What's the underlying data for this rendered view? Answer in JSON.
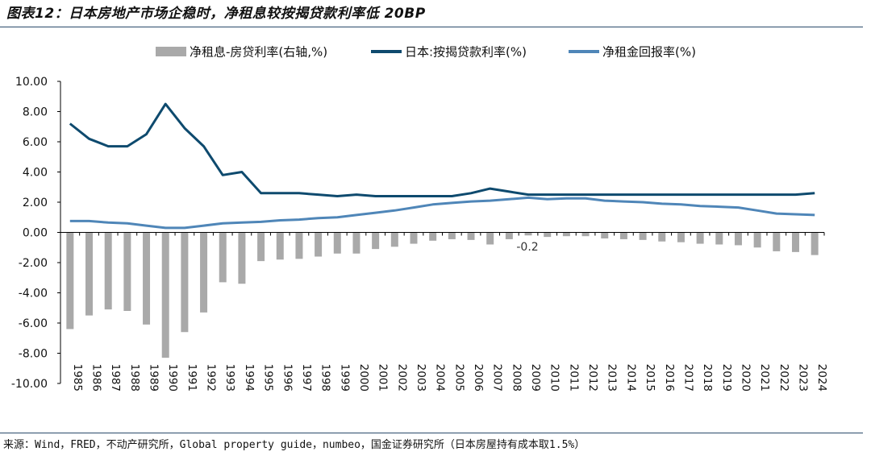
{
  "title": "图表12：日本房地产市场企稳时，净租息较按揭贷款利率低 20BP",
  "source": "来源：Wind，FRED，不动产研究所，Global property guide，numbeo，国金证券研究所（日本房屋持有成本取1.5%）",
  "colors": {
    "bar": "#a9a9a9",
    "mortgage": "#0e4a6e",
    "yield": "#4f86b8",
    "axis": "#000000"
  },
  "chart_data": {
    "type": "bar+line",
    "categories": [
      "1985",
      "1986",
      "1987",
      "1988",
      "1989",
      "1990",
      "1991",
      "1992",
      "1993",
      "1994",
      "1995",
      "1996",
      "1997",
      "1998",
      "1999",
      "2000",
      "2001",
      "2002",
      "2003",
      "2004",
      "2005",
      "2006",
      "2007",
      "2008",
      "2009",
      "2010",
      "2011",
      "2012",
      "2013",
      "2014",
      "2015",
      "2016",
      "2017",
      "2018",
      "2019",
      "2020",
      "2021",
      "2022",
      "2023",
      "2024"
    ],
    "ylim": [
      -10,
      10
    ],
    "yticks": [
      "10.00",
      "8.00",
      "6.00",
      "4.00",
      "2.00",
      "0.00",
      "-2.00",
      "-4.00",
      "-6.00",
      "-8.00",
      "-10.00"
    ],
    "series": [
      {
        "name": "净租息-房贷利率(右轴,%)",
        "type": "bar",
        "values": [
          -6.4,
          -5.5,
          -5.1,
          -5.2,
          -6.1,
          -8.3,
          -6.6,
          -5.3,
          -3.3,
          -3.4,
          -1.9,
          -1.8,
          -1.75,
          -1.6,
          -1.4,
          -1.4,
          -1.1,
          -0.95,
          -0.75,
          -0.55,
          -0.45,
          -0.5,
          -0.8,
          -0.45,
          -0.2,
          -0.3,
          -0.25,
          -0.25,
          -0.4,
          -0.45,
          -0.5,
          -0.6,
          -0.65,
          -0.75,
          -0.8,
          -0.85,
          -1.0,
          -1.25,
          -1.3,
          -1.5
        ]
      },
      {
        "name": "日本:按揭贷款利率(%)",
        "type": "line",
        "values": [
          7.2,
          6.2,
          5.7,
          5.7,
          6.5,
          8.5,
          6.9,
          5.7,
          3.8,
          4.0,
          2.6,
          2.6,
          2.6,
          2.5,
          2.4,
          2.5,
          2.4,
          2.4,
          2.4,
          2.4,
          2.4,
          2.6,
          2.9,
          2.7,
          2.5,
          2.5,
          2.5,
          2.5,
          2.5,
          2.5,
          2.5,
          2.5,
          2.5,
          2.5,
          2.5,
          2.5,
          2.5,
          2.5,
          2.5,
          2.6
        ]
      },
      {
        "name": "净租金回报率(%)",
        "type": "line",
        "values": [
          0.75,
          0.75,
          0.65,
          0.6,
          0.45,
          0.3,
          0.3,
          0.45,
          0.6,
          0.65,
          0.7,
          0.8,
          0.85,
          0.95,
          1.0,
          1.15,
          1.3,
          1.45,
          1.65,
          1.85,
          1.95,
          2.05,
          2.1,
          2.2,
          2.3,
          2.2,
          2.25,
          2.25,
          2.1,
          2.05,
          2.0,
          1.9,
          1.85,
          1.75,
          1.7,
          1.65,
          1.45,
          1.25,
          1.2,
          1.15
        ]
      }
    ],
    "annotations": [
      {
        "category": "2009",
        "text": "-0.2"
      }
    ],
    "legend": "top"
  }
}
